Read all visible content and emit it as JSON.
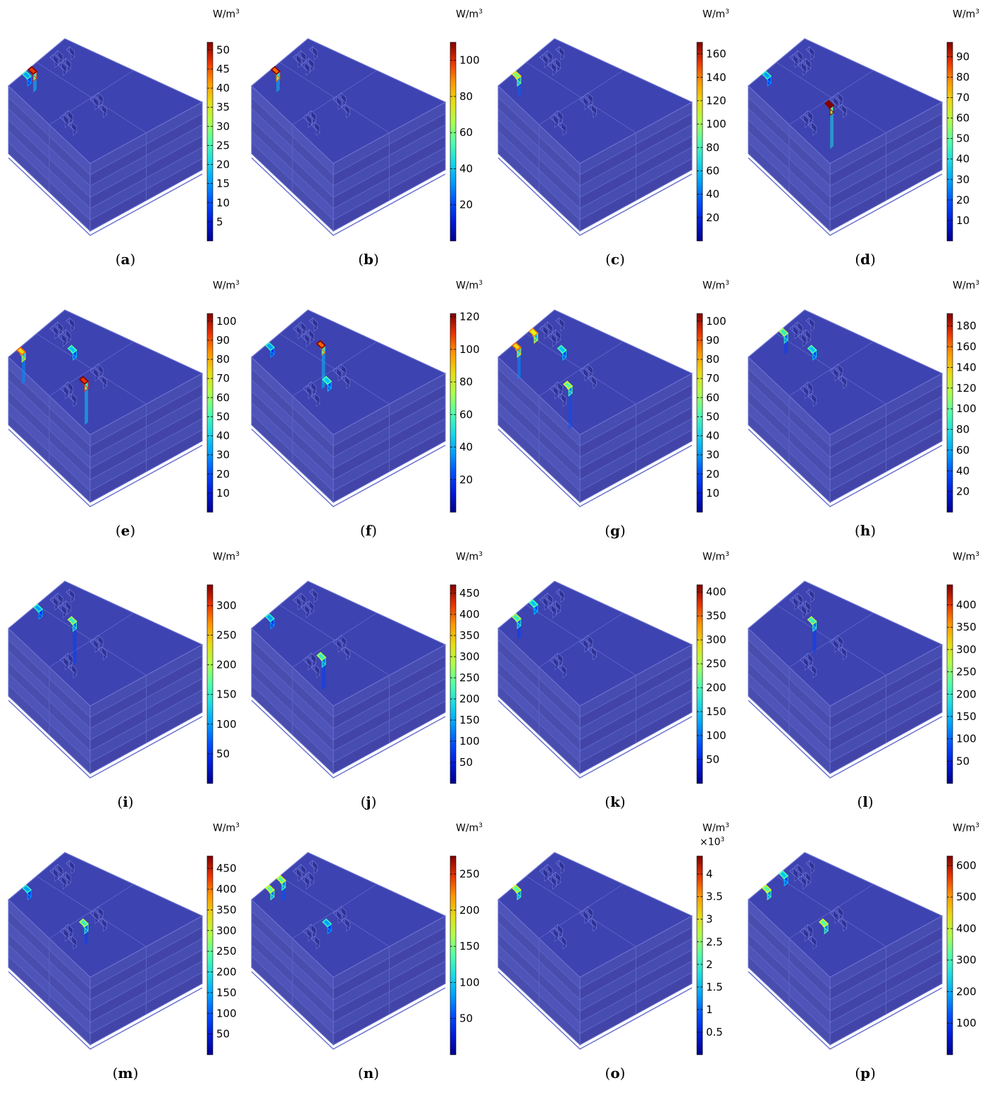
{
  "unit_base": "W/m",
  "unit_exp": "3",
  "panels": [
    {
      "label": "a",
      "ticks": [
        "5",
        "10",
        "15",
        "20",
        "25",
        "30",
        "35",
        "40",
        "45",
        "50"
      ],
      "max": 52,
      "hotspots": [
        {
          "col": 2,
          "row": 0,
          "level": 0.9,
          "depth": 1
        },
        {
          "col": 1,
          "row": 0,
          "level": 0.3,
          "depth": 0
        }
      ]
    },
    {
      "label": "b",
      "ticks": [
        "20",
        "40",
        "60",
        "80",
        "100"
      ],
      "max": 110,
      "hotspots": [
        {
          "col": 2,
          "row": 0,
          "level": 0.85,
          "depth": 1
        }
      ]
    },
    {
      "label": "c",
      "ticks": [
        "20",
        "40",
        "60",
        "80",
        "100",
        "120",
        "140",
        "160"
      ],
      "max": 170,
      "hotspots": [
        {
          "col": 1,
          "row": 0,
          "level": 0.55,
          "depth": 1
        }
      ]
    },
    {
      "label": "d",
      "ticks": [
        "10",
        "20",
        "30",
        "40",
        "50",
        "60",
        "70",
        "80",
        "90"
      ],
      "max": 97,
      "hotspots": [
        {
          "col": 4,
          "row": 2,
          "level": 1.0,
          "depth": 3
        },
        {
          "col": 1,
          "row": 0,
          "level": 0.3,
          "depth": 0
        }
      ]
    },
    {
      "label": "e",
      "ticks": [
        "10",
        "20",
        "30",
        "40",
        "50",
        "60",
        "70",
        "80",
        "90",
        "100"
      ],
      "max": 104,
      "hotspots": [
        {
          "col": 0,
          "row": 0,
          "level": 0.7,
          "depth": 2
        },
        {
          "col": 3,
          "row": 2,
          "level": 0.9,
          "depth": 3
        },
        {
          "col": 5,
          "row": 1,
          "level": 0.35,
          "depth": 0
        }
      ]
    },
    {
      "label": "f",
      "ticks": [
        "20",
        "40",
        "60",
        "80",
        "100",
        "120"
      ],
      "max": 122,
      "hotspots": [
        {
          "col": 6,
          "row": 1,
          "level": 0.85,
          "depth": 3
        },
        {
          "col": 3,
          "row": 2,
          "level": 0.35,
          "depth": 0
        },
        {
          "col": 1,
          "row": 0,
          "level": 0.3,
          "depth": 0
        }
      ]
    },
    {
      "label": "g",
      "ticks": [
        "10",
        "20",
        "30",
        "40",
        "50",
        "60",
        "70",
        "80",
        "90",
        "100"
      ],
      "max": 104,
      "hotspots": [
        {
          "col": 1,
          "row": 0,
          "level": 0.7,
          "depth": 2
        },
        {
          "col": 4,
          "row": 0,
          "level": 0.65,
          "depth": 0
        },
        {
          "col": 2,
          "row": 2,
          "level": 0.5,
          "depth": 3
        },
        {
          "col": 5,
          "row": 1,
          "level": 0.35,
          "depth": 0
        }
      ]
    },
    {
      "label": "h",
      "ticks": [
        "20",
        "40",
        "60",
        "80",
        "100",
        "120",
        "140",
        "160",
        "180"
      ],
      "max": 192,
      "hotspots": [
        {
          "col": 4,
          "row": 0,
          "level": 0.45,
          "depth": 1
        },
        {
          "col": 5,
          "row": 1,
          "level": 0.35,
          "depth": 0
        }
      ]
    },
    {
      "label": "i",
      "ticks": [
        "50",
        "100",
        "150",
        "200",
        "250",
        "300"
      ],
      "max": 335,
      "hotspots": [
        {
          "col": 5,
          "row": 1,
          "level": 0.45,
          "depth": 3
        },
        {
          "col": 3,
          "row": 0,
          "level": 0.3,
          "depth": 0
        }
      ]
    },
    {
      "label": "j",
      "ticks": [
        "50",
        "100",
        "150",
        "200",
        "250",
        "300",
        "350",
        "400",
        "450"
      ],
      "max": 470,
      "hotspots": [
        {
          "col": 2,
          "row": 2,
          "level": 0.45,
          "depth": 2
        },
        {
          "col": 1,
          "row": 0,
          "level": 0.3,
          "depth": 0
        }
      ]
    },
    {
      "label": "k",
      "ticks": [
        "50",
        "100",
        "150",
        "200",
        "250",
        "300",
        "350",
        "400"
      ],
      "max": 415,
      "hotspots": [
        {
          "col": 1,
          "row": 0,
          "level": 0.45,
          "depth": 1
        },
        {
          "col": 4,
          "row": 0,
          "level": 0.35,
          "depth": 0
        }
      ]
    },
    {
      "label": "l",
      "ticks": [
        "50",
        "100",
        "150",
        "200",
        "250",
        "300",
        "350",
        "400"
      ],
      "max": 445,
      "hotspots": [
        {
          "col": 5,
          "row": 1,
          "level": 0.45,
          "depth": 2
        }
      ]
    },
    {
      "label": "m",
      "ticks": [
        "50",
        "100",
        "150",
        "200",
        "250",
        "300",
        "350",
        "400",
        "450"
      ],
      "max": 480,
      "hotspots": [
        {
          "col": 3,
          "row": 2,
          "level": 0.45,
          "depth": 1
        },
        {
          "col": 1,
          "row": 0,
          "level": 0.3,
          "depth": 0
        }
      ]
    },
    {
      "label": "n",
      "ticks": [
        "50",
        "100",
        "150",
        "200",
        "250"
      ],
      "max": 275,
      "hotspots": [
        {
          "col": 3,
          "row": 0,
          "level": 0.5,
          "depth": 1
        },
        {
          "col": 1,
          "row": 0,
          "level": 0.5,
          "depth": 0
        },
        {
          "col": 3,
          "row": 2,
          "level": 0.3,
          "depth": 0
        }
      ]
    },
    {
      "label": "o",
      "ticks": [
        "0.5",
        "1",
        "1.5",
        "2",
        "2.5",
        "3",
        "3.5",
        "4"
      ],
      "max": 4.4,
      "multiplier": "×10",
      "multiplier_exp": "3",
      "hotspots": [
        {
          "col": 1,
          "row": 0,
          "level": 0.5,
          "depth": 0
        }
      ]
    },
    {
      "label": "p",
      "ticks": [
        "100",
        "200",
        "300",
        "400",
        "500",
        "600"
      ],
      "max": 630,
      "hotspots": [
        {
          "col": 1,
          "row": 0,
          "level": 0.5,
          "depth": 0
        },
        {
          "col": 4,
          "row": 0,
          "level": 0.35,
          "depth": 0
        },
        {
          "col": 3,
          "row": 2,
          "level": 0.5,
          "depth": 0
        }
      ]
    }
  ]
}
